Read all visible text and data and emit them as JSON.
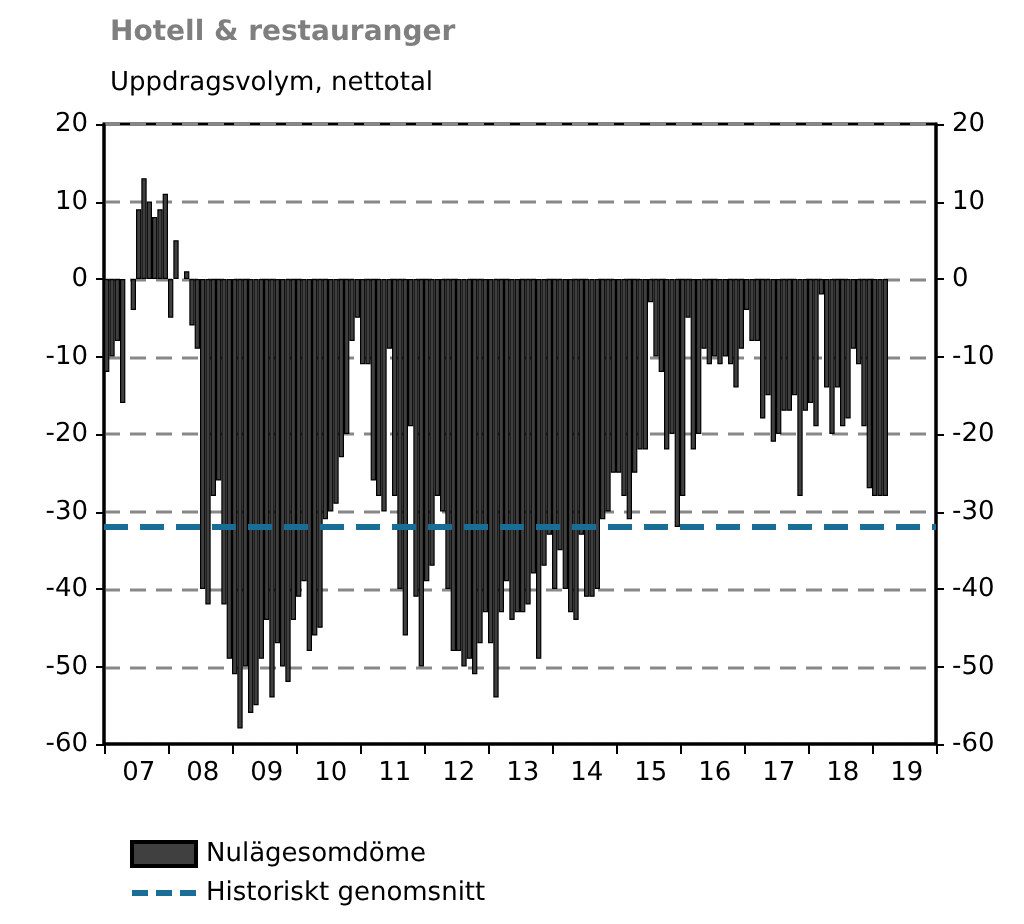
{
  "chart_data": {
    "type": "bar",
    "title": "Hotell & restauranger",
    "subtitle": "Uppdragsvolym, nettotal",
    "categories": [
      null,
      null,
      null,
      null,
      null,
      null,
      "07",
      null,
      null,
      null,
      null,
      null,
      null,
      null,
      null,
      null,
      null,
      null,
      "08",
      null,
      null,
      null,
      null,
      null,
      null,
      null,
      null,
      null,
      null,
      null,
      "09",
      null,
      null,
      null,
      null,
      null,
      null,
      null,
      null,
      null,
      null,
      null,
      "10",
      null,
      null,
      null,
      null,
      null,
      null,
      null,
      null,
      null,
      null,
      null,
      "11",
      null,
      null,
      null,
      null,
      null,
      null,
      null,
      null,
      null,
      null,
      null,
      "12",
      null,
      null,
      null,
      null,
      null,
      null,
      null,
      null,
      null,
      null,
      null,
      "13",
      null,
      null,
      null,
      null,
      null,
      null,
      null,
      null,
      null,
      null,
      null,
      "14",
      null,
      null,
      null,
      null,
      null,
      null,
      null,
      null,
      null,
      null,
      null,
      "15",
      null,
      null,
      null,
      null,
      null,
      null,
      null,
      null,
      null,
      null,
      null,
      "16",
      null,
      null,
      null,
      null,
      null,
      null,
      null,
      null,
      null,
      null,
      null,
      "17",
      null,
      null,
      null,
      null,
      null,
      null,
      null,
      null,
      null,
      null,
      null,
      "18",
      null,
      null,
      null,
      null,
      null,
      null,
      null,
      null,
      null,
      null,
      null,
      "19",
      null,
      null,
      null,
      null,
      null
    ],
    "series": [
      {
        "name": "Nulägesomdöme",
        "color": "#404040",
        "values": [
          -12,
          -10,
          -8,
          -16,
          0,
          -4,
          9,
          13,
          10,
          8,
          9,
          11,
          -5,
          5,
          0,
          1,
          -6,
          -9,
          -40,
          -42,
          -28,
          -26,
          -42,
          -49,
          -51,
          -58,
          -50,
          -56,
          -55,
          -49,
          -44,
          -54,
          -47,
          -50,
          -52,
          -44,
          -41,
          -39,
          -48,
          -46,
          -45,
          -31,
          -30,
          -29,
          -23,
          -20,
          -8,
          -5,
          -11,
          -11,
          -26,
          -28,
          -30,
          -9,
          -28,
          -40,
          -46,
          -19,
          -41,
          -50,
          -39,
          -37,
          -28,
          -30,
          -40,
          -48,
          -48,
          -50,
          -49,
          -51,
          -47,
          -43,
          -47,
          -54,
          -43,
          -39,
          -44,
          -43,
          -43,
          -42,
          -38,
          -49,
          -37,
          -33,
          -40,
          -35,
          -40,
          -43,
          -44,
          -33,
          -41,
          -41,
          -40,
          -31,
          -30,
          -25,
          -25,
          -28,
          -31,
          -25,
          -22,
          -22,
          -3,
          -10,
          -12,
          -22,
          -20,
          -32,
          -28,
          -5,
          -22,
          -20,
          -9,
          -11,
          -10,
          -11,
          -10,
          -11,
          -14,
          -9,
          -4,
          -8,
          -8,
          -18,
          -15,
          -21,
          -20,
          -17,
          -17,
          -15,
          -28,
          -17,
          -16,
          -19,
          -2,
          -14,
          -20,
          -14,
          -19,
          -18,
          -9,
          -11,
          -19,
          -27,
          -28,
          -28,
          -28,
          null,
          null,
          null,
          null,
          null,
          null,
          null,
          null,
          null
        ]
      }
    ],
    "ref_lines": [
      {
        "axis": "y",
        "value": -32,
        "label": "Historiskt genomsnitt",
        "color": "#1a6e96",
        "line_style": "dashed"
      }
    ],
    "ylim": [
      -60,
      20
    ],
    "yticks": [
      -60,
      -50,
      -40,
      -30,
      -20,
      -10,
      0,
      10,
      20
    ],
    "y2lim": [
      -60,
      20
    ],
    "y2ticks": [
      -60,
      -50,
      -40,
      -30,
      -20,
      -10,
      0,
      10,
      20
    ],
    "grid": "y",
    "legend": "bottom"
  }
}
